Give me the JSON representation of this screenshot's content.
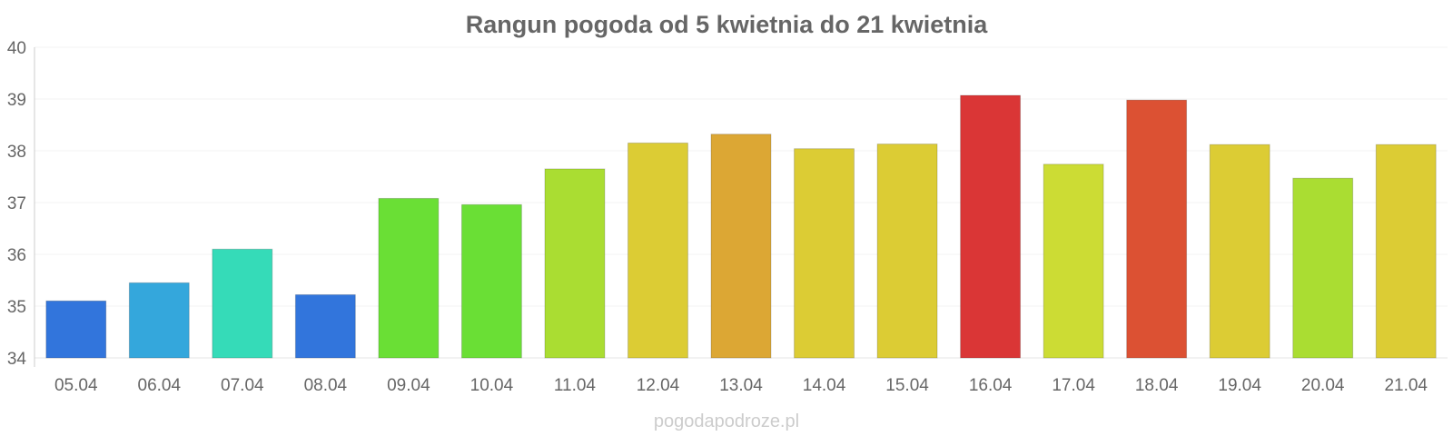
{
  "chart_data": {
    "type": "bar",
    "title": "Rangun pogoda od 5 kwietnia do 21 kwietnia",
    "xlabel": "",
    "ylabel": "",
    "ylim": [
      34,
      40
    ],
    "yticks": [
      34,
      35,
      36,
      37,
      38,
      39,
      40
    ],
    "grid": true,
    "legend": "none",
    "categories": [
      "05.04",
      "06.04",
      "07.04",
      "08.04",
      "09.04",
      "10.04",
      "11.04",
      "12.04",
      "13.04",
      "14.04",
      "15.04",
      "16.04",
      "17.04",
      "18.04",
      "19.04",
      "20.04",
      "21.04"
    ],
    "values": [
      35.1,
      35.45,
      36.1,
      35.22,
      37.08,
      36.96,
      37.65,
      38.15,
      38.32,
      38.04,
      38.13,
      39.07,
      37.74,
      38.98,
      38.12,
      37.47,
      38.12
    ],
    "colors": [
      "#3275dc",
      "#34a7dc",
      "#35dbb8",
      "#3275dc",
      "#6adf35",
      "#6adf35",
      "#aadd32",
      "#dccc34",
      "#dca734",
      "#dccc34",
      "#dccc34",
      "#da3636",
      "#ccdc34",
      "#dc5133",
      "#dccc34",
      "#aadd32",
      "#dccc34"
    ]
  },
  "footer": {
    "credit": "pogodapodroze.pl"
  }
}
